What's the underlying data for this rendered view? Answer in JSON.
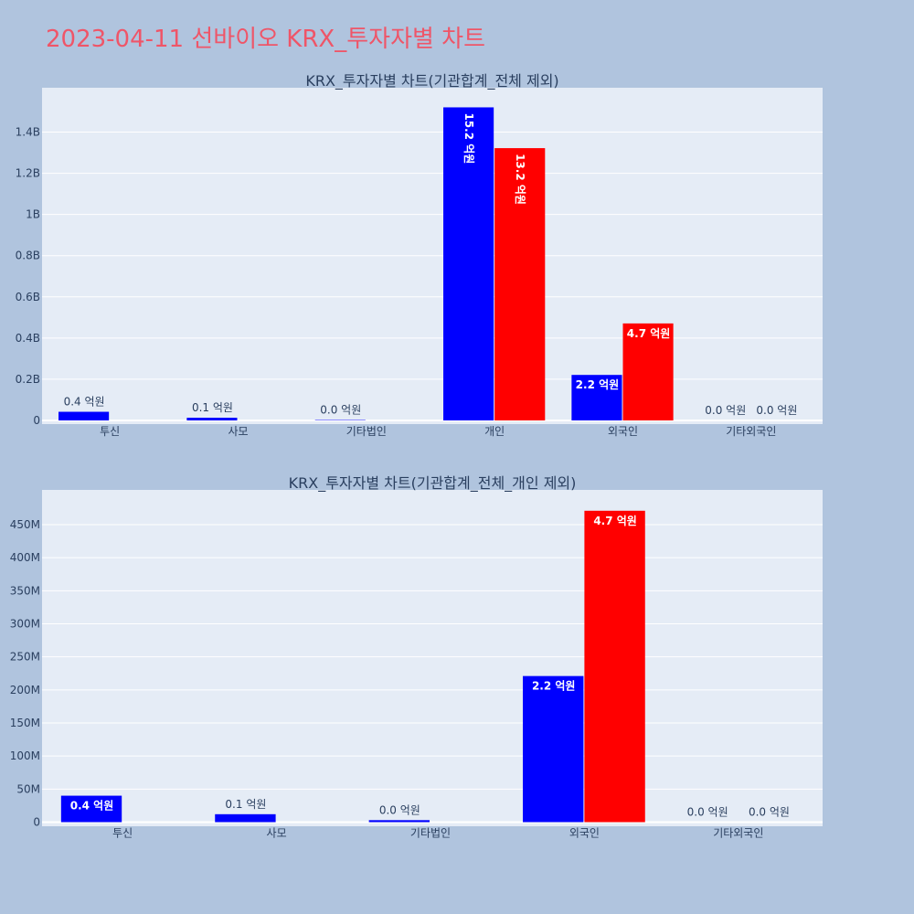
{
  "page_title": "2023-04-11 선바이오 KRX_투자자별 차트",
  "colors": {
    "background": "#b0c4de",
    "title": "#ef5568",
    "plot_bg": "#e5ecf6",
    "buy": "#0000ff",
    "sell": "#ff0000"
  },
  "chart_data": [
    {
      "type": "bar",
      "title": "KRX_투자자별 차트(기관합계_전체 제외)",
      "categories": [
        "투신",
        "사모",
        "기타법인",
        "개인",
        "외국인",
        "기타외국인"
      ],
      "ylim": [
        0,
        1600000000
      ],
      "yticks": [
        0,
        200000000,
        400000000,
        600000000,
        800000000,
        1000000000,
        1200000000,
        1400000000
      ],
      "ytick_labels": [
        "0",
        "0.2B",
        "0.4B",
        "0.6B",
        "0.8B",
        "1B",
        "1.2B",
        "1.4B"
      ],
      "grid": true,
      "series": [
        {
          "color": "#0000ff",
          "values": [
            42000000,
            13000000,
            2000000,
            1520000000,
            221000000,
            0
          ],
          "labels": [
            "0.4 억원",
            "0.1 억원",
            "0.0 억원",
            "15.2 억원",
            "2.2 억원",
            "0.0 억원"
          ]
        },
        {
          "color": "#ff0000",
          "values": [
            0,
            0,
            0,
            1322000000,
            471000000,
            0
          ],
          "labels": [
            "",
            "",
            "",
            "13.2 억원",
            "4.7 억원",
            "0.0 억원"
          ]
        }
      ]
    },
    {
      "type": "bar",
      "title": "KRX_투자자별 차트(기관합계_전체_개인 제외)",
      "categories": [
        "투신",
        "사모",
        "기타법인",
        "외국인",
        "기타외국인"
      ],
      "ylim": [
        0,
        500000000
      ],
      "yticks": [
        0,
        50000000,
        100000000,
        150000000,
        200000000,
        250000000,
        300000000,
        350000000,
        400000000,
        450000000
      ],
      "ytick_labels": [
        "0",
        "50M",
        "100M",
        "150M",
        "200M",
        "250M",
        "300M",
        "350M",
        "400M",
        "450M"
      ],
      "grid": true,
      "series": [
        {
          "color": "#0000ff",
          "values": [
            40000000,
            12000000,
            3000000,
            221000000,
            0
          ],
          "labels": [
            "0.4 억원",
            "0.1 억원",
            "0.0 억원",
            "2.2 억원",
            "0.0 억원"
          ]
        },
        {
          "color": "#ff0000",
          "values": [
            0,
            0,
            0,
            471000000,
            0
          ],
          "labels": [
            "",
            "",
            "",
            "4.7 억원",
            "0.0 억원"
          ]
        }
      ]
    }
  ]
}
